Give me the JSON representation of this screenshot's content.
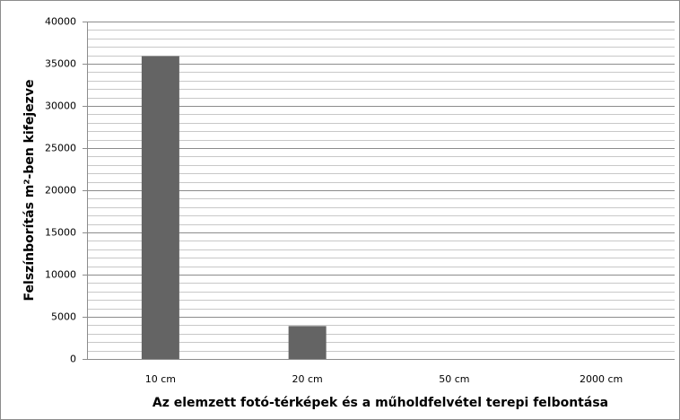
{
  "chart_data": {
    "type": "bar",
    "xlabel": "Az elemzett fotó-térképek és a műholdfelvétel terepi felbontása",
    "ylabel": "Felszínborítás m²-ben kifejezve",
    "categories": [
      "10 cm",
      "20 cm",
      "50 cm",
      "2000 cm"
    ],
    "values": [
      35900,
      3900,
      0,
      0
    ],
    "color": "#646464",
    "ylim": [
      0,
      40000
    ],
    "yticks": [
      0,
      5000,
      10000,
      15000,
      20000,
      25000,
      30000,
      35000,
      40000
    ],
    "minor_yticks": [
      1000,
      2000,
      3000,
      4000,
      6000,
      7000,
      8000,
      9000,
      11000,
      12000,
      13000,
      14000,
      16000,
      17000,
      18000,
      19000,
      21000,
      22000,
      23000,
      24000,
      26000,
      27000,
      28000,
      29000,
      31000,
      32000,
      33000,
      34000,
      36000,
      37000,
      38000,
      39000
    ],
    "grid": true
  }
}
